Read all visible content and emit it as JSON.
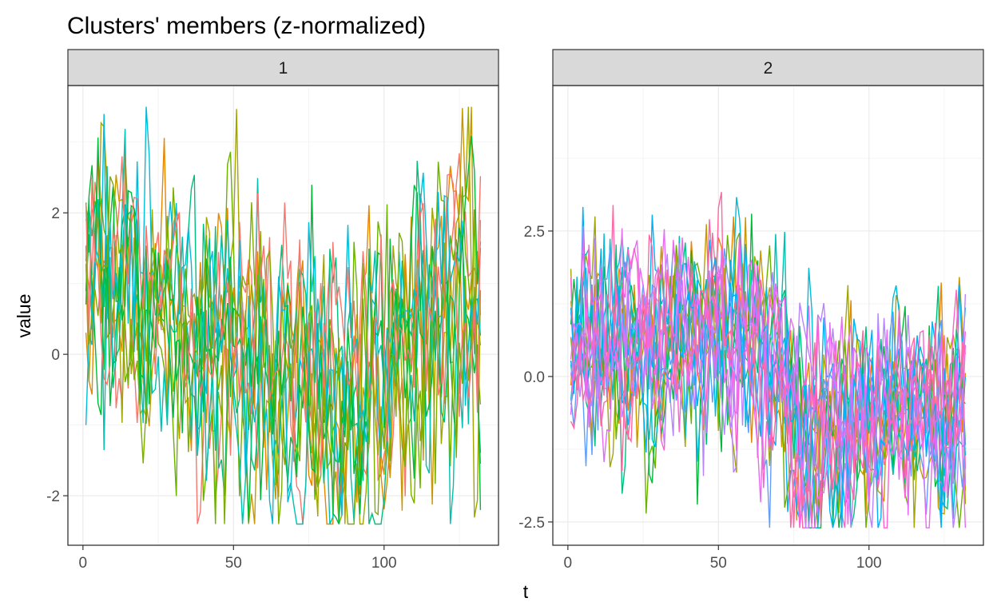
{
  "chart_data": {
    "type": "line",
    "title": "Clusters' members (z-normalized)",
    "xlabel": "t",
    "ylabel": "value",
    "grid": true,
    "legend": "none",
    "panels": [
      {
        "strip": "1",
        "xlim": [
          -5,
          138
        ],
        "ylim": [
          -2.7,
          3.8
        ],
        "x_ticks": [
          0,
          50,
          100
        ],
        "x_tick_labels": [
          "0",
          "50",
          "100"
        ],
        "y_ticks": [
          -2,
          0,
          2
        ],
        "y_tick_labels": [
          "-2",
          "0",
          "2"
        ],
        "series_length": 132,
        "series_count": 12,
        "colors": [
          "#F8766D",
          "#E58700",
          "#C99800",
          "#A3A500",
          "#6BB100",
          "#00BA38",
          "#00BF7D",
          "#00C0AF",
          "#00BCD8",
          "#00BA38",
          "#7CAE00",
          "#F8766D"
        ],
        "mean_profile": [
          [
            1,
            1.2
          ],
          [
            10,
            1.0
          ],
          [
            20,
            0.7
          ],
          [
            30,
            0.3
          ],
          [
            40,
            0.1
          ],
          [
            50,
            0.2
          ],
          [
            60,
            -0.1
          ],
          [
            70,
            -0.5
          ],
          [
            80,
            -0.8
          ],
          [
            90,
            -0.6
          ],
          [
            100,
            -0.2
          ],
          [
            110,
            0.3
          ],
          [
            120,
            0.6
          ],
          [
            132,
            0.8
          ]
        ]
      },
      {
        "strip": "2",
        "xlim": [
          -5,
          138
        ],
        "ylim": [
          -2.9,
          5.0
        ],
        "x_ticks": [
          0,
          50,
          100
        ],
        "x_tick_labels": [
          "0",
          "50",
          "100"
        ],
        "y_ticks": [
          -2.5,
          0.0,
          2.5
        ],
        "y_tick_labels": [
          "-2.5",
          "0.0",
          "2.5"
        ],
        "series_length": 132,
        "series_count": 18,
        "colors": [
          "#E58700",
          "#C99800",
          "#A3A500",
          "#6BB100",
          "#00BA38",
          "#00BF7D",
          "#00C0AF",
          "#00BCD8",
          "#00B0F6",
          "#619CFF",
          "#B983FF",
          "#E76BF3",
          "#FD61D1",
          "#FF67A4",
          "#00B0F6",
          "#B983FF",
          "#FF67A4",
          "#E76BF3"
        ],
        "mean_profile": [
          [
            1,
            0.5
          ],
          [
            10,
            0.5
          ],
          [
            20,
            0.4
          ],
          [
            30,
            0.6
          ],
          [
            40,
            0.8
          ],
          [
            50,
            0.9
          ],
          [
            60,
            0.7
          ],
          [
            70,
            0.3
          ],
          [
            75,
            -0.8
          ],
          [
            85,
            -0.9
          ],
          [
            100,
            -0.8
          ],
          [
            110,
            -0.7
          ],
          [
            120,
            -0.6
          ],
          [
            132,
            -0.5
          ]
        ]
      }
    ]
  }
}
